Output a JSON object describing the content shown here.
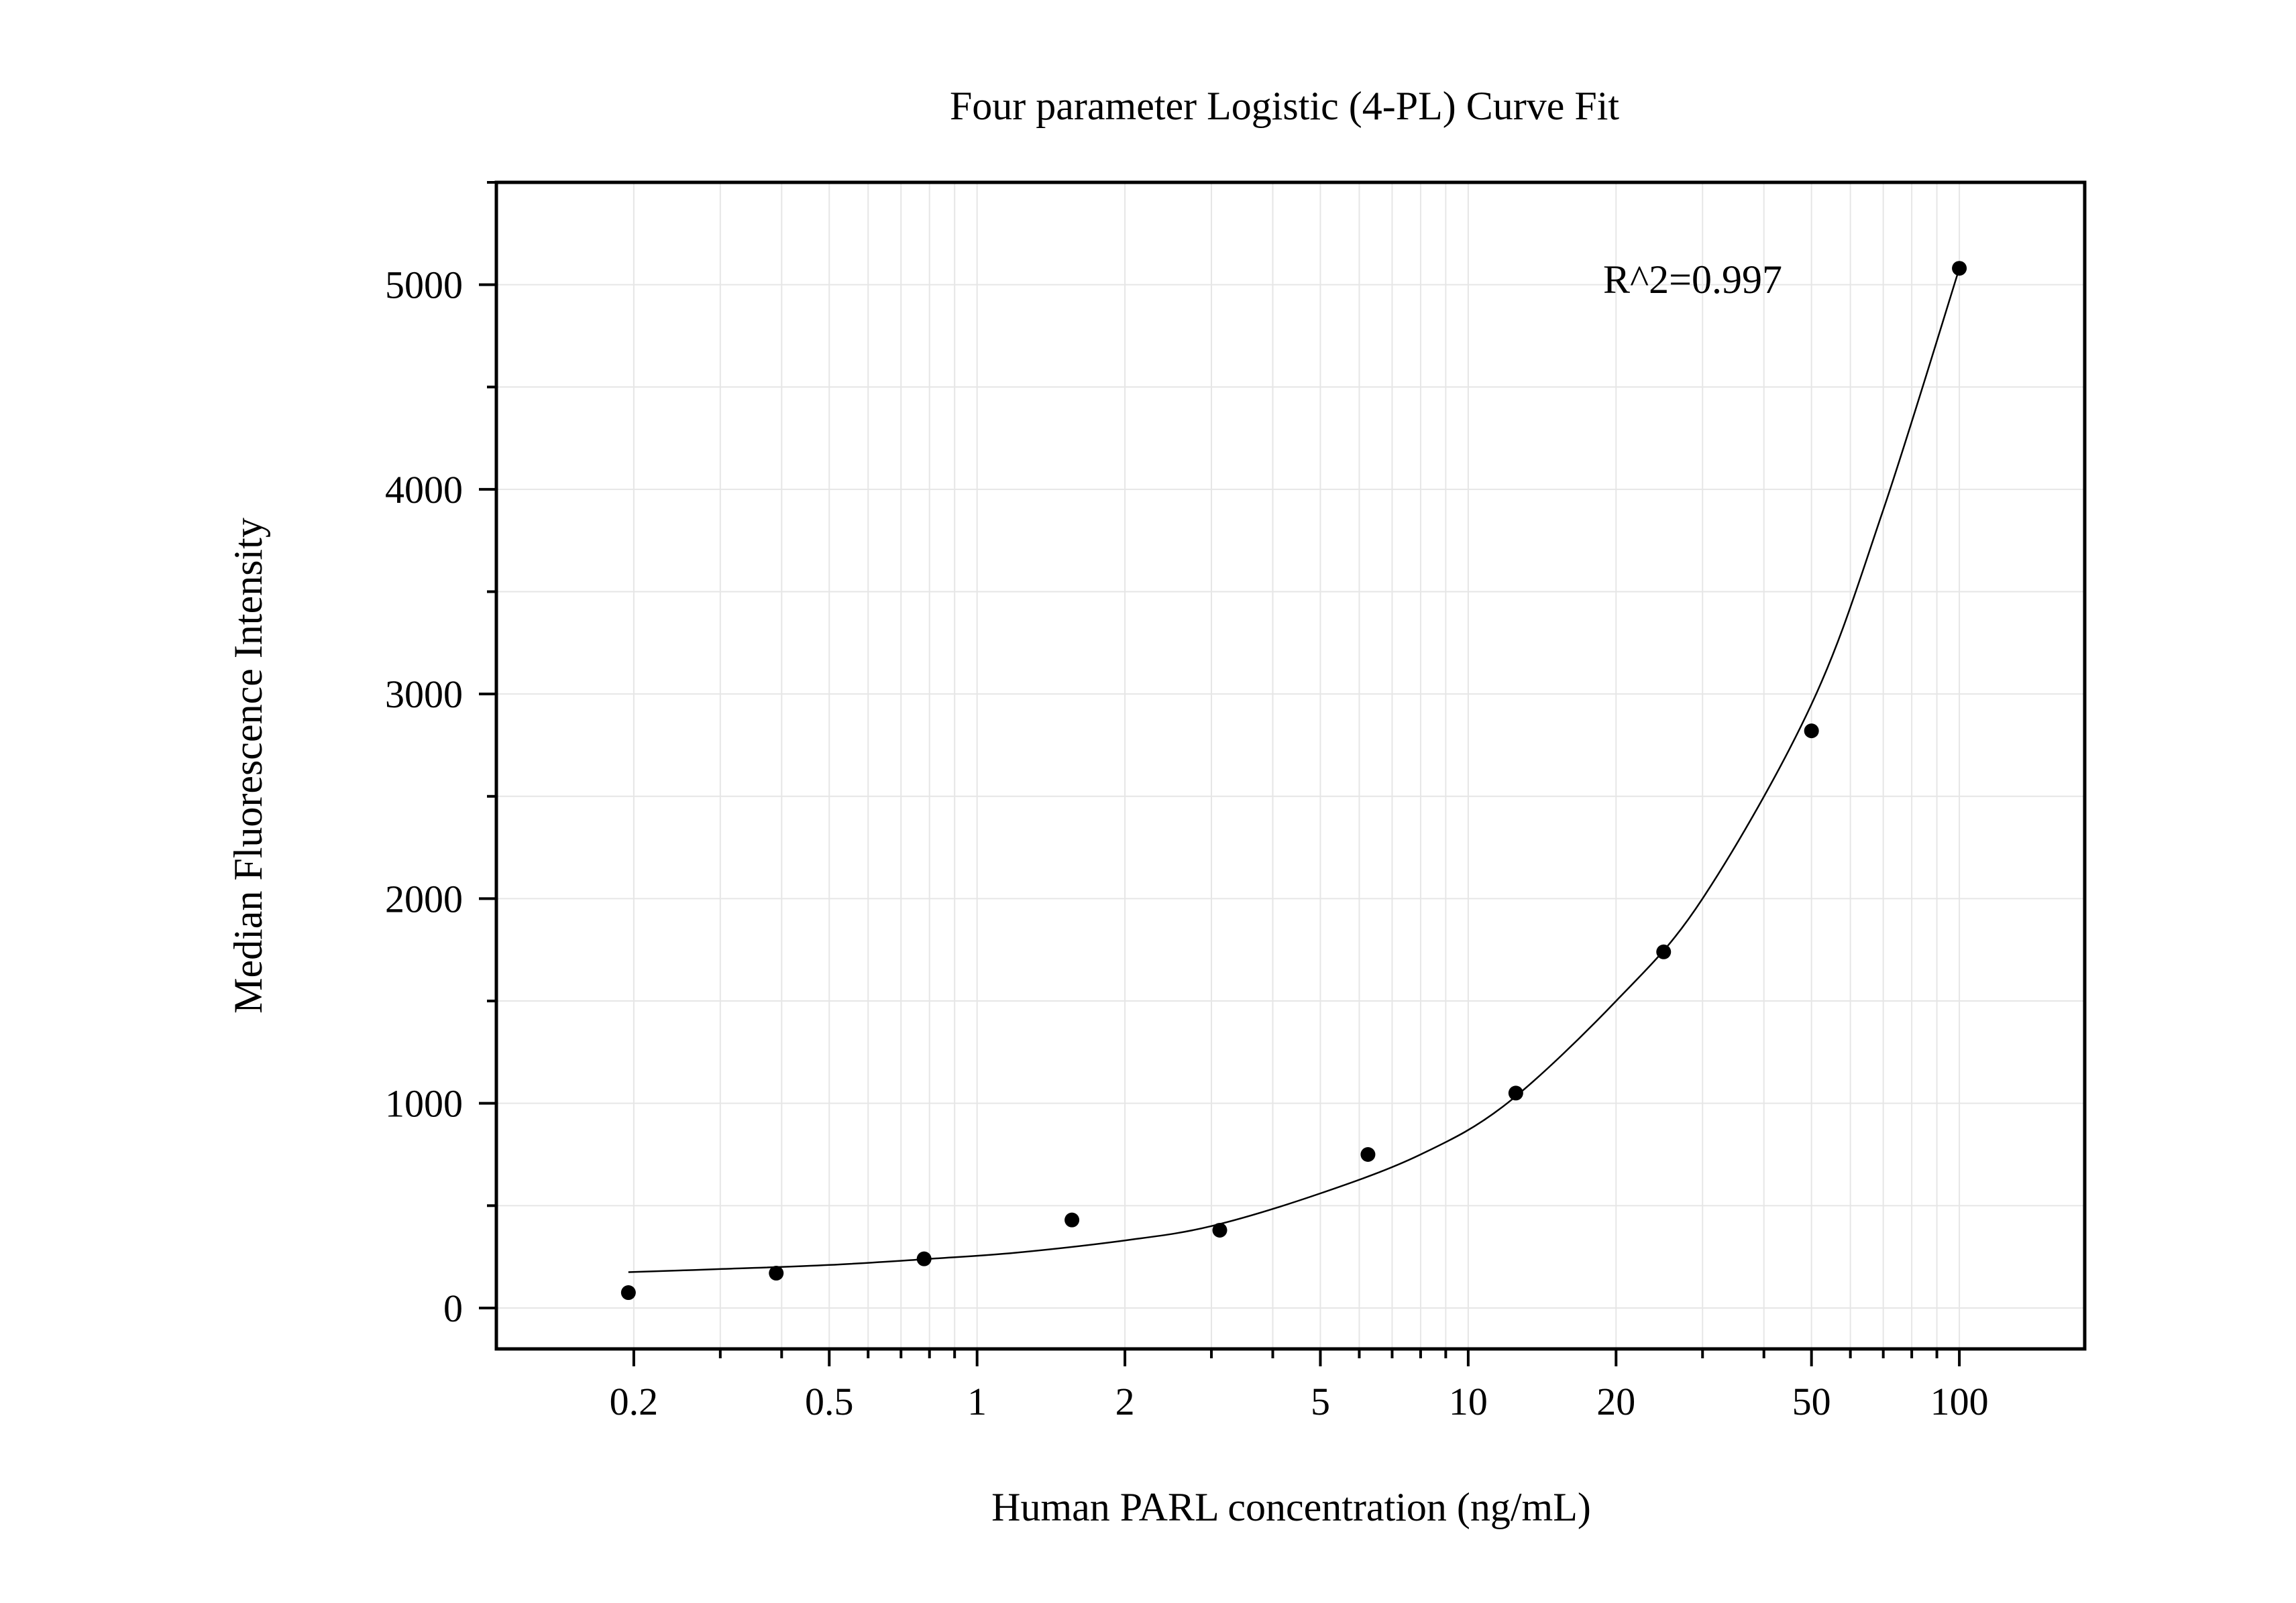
{
  "chart_data": {
    "type": "scatter",
    "title": "Four parameter Logistic (4-PL) Curve Fit",
    "xlabel": "Human PARL concentration (ng/mL)",
    "ylabel": "Median Fluorescence Intensity",
    "x_scale": "log",
    "xlim": [
      0.105,
      180
    ],
    "ylim": [
      -200,
      5500
    ],
    "x_ticks": [
      0.2,
      0.5,
      1,
      2,
      5,
      10,
      20,
      50,
      100
    ],
    "x_tick_labels": [
      "0.2",
      "0.5",
      "1",
      "2",
      "5",
      "10",
      "20",
      "50",
      "100"
    ],
    "y_ticks": [
      0,
      1000,
      2000,
      3000,
      4000,
      5000
    ],
    "y_tick_labels": [
      "0",
      "1000",
      "2000",
      "3000",
      "4000",
      "5000"
    ],
    "grid": true,
    "annotation": "R^2=0.997",
    "series": [
      {
        "type": "scatter",
        "x": [
          0.195,
          0.39,
          0.78,
          1.56,
          3.12,
          6.25,
          12.5,
          25,
          50,
          100
        ],
        "y": [
          75,
          170,
          240,
          430,
          380,
          750,
          1050,
          1740,
          2820,
          5080
        ]
      },
      {
        "type": "line",
        "x": [
          0.195,
          0.3,
          0.5,
          0.8,
          1.2,
          2,
          3,
          5,
          8,
          12,
          20,
          30,
          50,
          70,
          100
        ],
        "y": [
          175,
          190,
          210,
          240,
          270,
          330,
          400,
          560,
          750,
          1000,
          1500,
          2000,
          2950,
          3900,
          5080
        ]
      }
    ],
    "colors": {
      "points": "#000000",
      "curve": "#000000",
      "grid": "#e6e6e6",
      "axes": "#000000"
    }
  }
}
